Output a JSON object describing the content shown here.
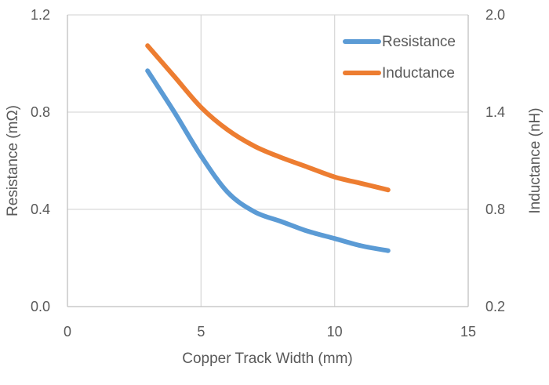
{
  "chart_data": {
    "type": "line",
    "title": "",
    "xlabel": "Copper Track Width (mm)",
    "ylabel": "Resistance (mΩ)",
    "y2label": "Inductance (nH)",
    "xlim": [
      0,
      15
    ],
    "ylim": [
      0,
      1.2
    ],
    "y2lim": [
      0.2,
      2.0
    ],
    "x_ticks": [
      "0",
      "5",
      "10",
      "15"
    ],
    "y_ticks": [
      "0.0",
      "0.4",
      "0.8",
      "1.2"
    ],
    "y2_ticks": [
      "0.2",
      "0.8",
      "1.4",
      "2.0"
    ],
    "grid": true,
    "legend_position": "top-right",
    "series": [
      {
        "name": "Resistance",
        "axis": "left",
        "color": "#5b9bd5",
        "x": [
          3,
          4,
          5,
          6,
          7,
          8,
          9,
          10,
          11,
          12
        ],
        "values": [
          0.97,
          0.8,
          0.62,
          0.47,
          0.39,
          0.35,
          0.31,
          0.28,
          0.25,
          0.23
        ]
      },
      {
        "name": "Inductance",
        "axis": "right",
        "color": "#ed7d31",
        "x": [
          3,
          4,
          5,
          6,
          7,
          8,
          9,
          10,
          11,
          12
        ],
        "values": [
          1.81,
          1.62,
          1.43,
          1.29,
          1.19,
          1.12,
          1.06,
          1.0,
          0.96,
          0.92
        ]
      }
    ]
  }
}
